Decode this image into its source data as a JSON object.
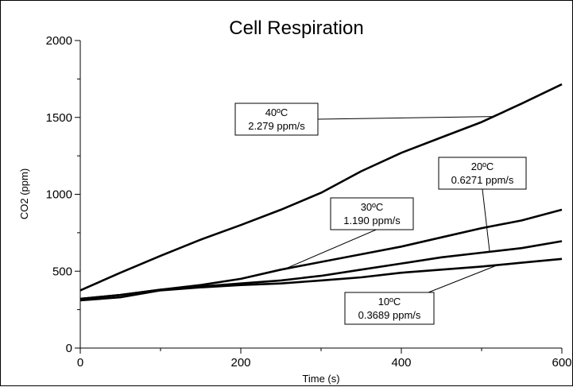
{
  "chart_data": {
    "type": "line",
    "title": "Cell Respiration",
    "xlabel": "Time (s)",
    "ylabel": "CO2 (ppm)",
    "xlim": [
      0,
      600
    ],
    "ylim": [
      0,
      2000
    ],
    "x_ticks": [
      0,
      200,
      400,
      600
    ],
    "y_ticks": [
      0,
      500,
      1000,
      1500,
      2000
    ],
    "x_tick_labels": [
      "0",
      "200",
      "400",
      "600"
    ],
    "y_tick_labels": [
      "0",
      "500",
      "1000",
      "1500",
      "2000"
    ],
    "grid": false,
    "legend": "none",
    "line_color": "#000000",
    "x": [
      0,
      50,
      100,
      150,
      200,
      250,
      300,
      350,
      400,
      450,
      500,
      550,
      600
    ],
    "series": [
      {
        "name": "40ºC",
        "values": [
          375,
          490,
          600,
          705,
          800,
          900,
          1010,
          1150,
          1270,
          1370,
          1470,
          1590,
          1715
        ]
      },
      {
        "name": "30ºC",
        "values": [
          320,
          345,
          380,
          410,
          450,
          510,
          560,
          610,
          660,
          720,
          780,
          830,
          900
        ]
      },
      {
        "name": "20ºC",
        "values": [
          320,
          345,
          380,
          400,
          420,
          440,
          470,
          510,
          550,
          590,
          620,
          650,
          695
        ]
      },
      {
        "name": "10ºC",
        "values": [
          310,
          330,
          375,
          395,
          410,
          420,
          440,
          460,
          490,
          510,
          530,
          555,
          580
        ]
      }
    ],
    "annotations": [
      {
        "series": "40ºC",
        "line1": "40ºC",
        "line2": "2.279 ppm/s"
      },
      {
        "series": "30ºC",
        "line1": "30ºC",
        "line2": "1.190 ppm/s"
      },
      {
        "series": "20ºC",
        "line1": "20ºC",
        "line2": "0.6271 ppm/s"
      },
      {
        "series": "10ºC",
        "line1": "10ºC",
        "line2": "0.3689 ppm/s"
      }
    ]
  }
}
